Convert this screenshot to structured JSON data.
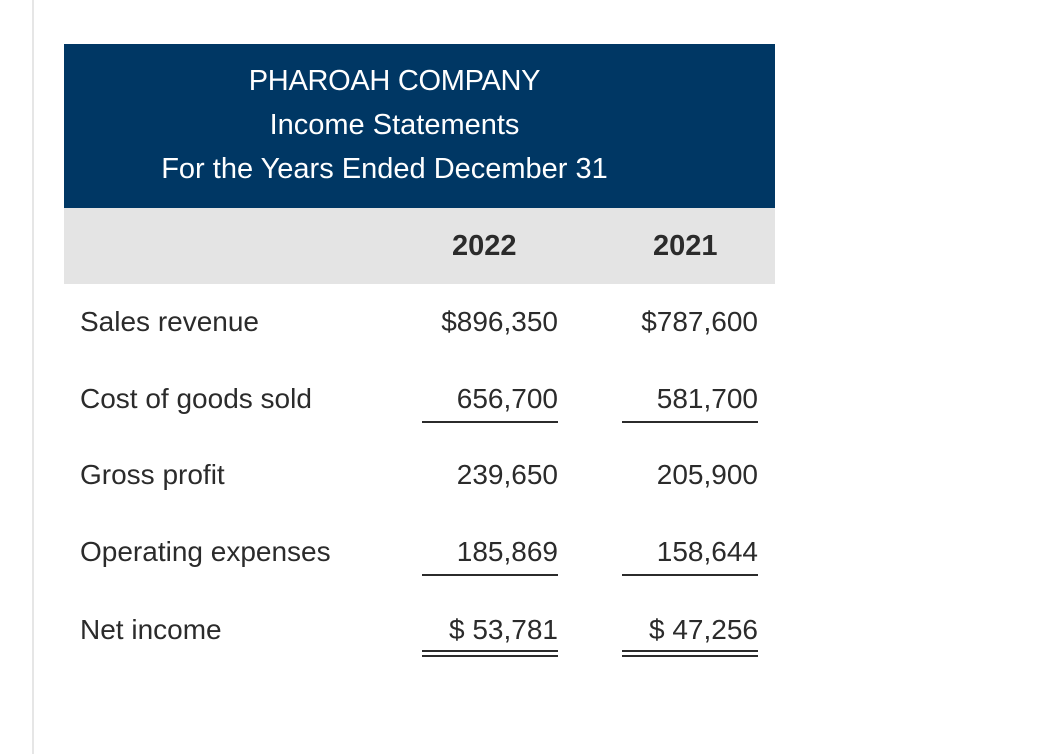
{
  "statement": {
    "company": "PHAROAH COMPANY",
    "title": "Income Statements",
    "period": "For the Years Ended December 31",
    "columns": [
      "2022",
      "2021"
    ],
    "rows": [
      {
        "label": "Sales revenue",
        "values": [
          "$896,350",
          "$787,600"
        ]
      },
      {
        "label": "Cost of goods sold",
        "values": [
          "656,700",
          "581,700"
        ]
      },
      {
        "label": "Gross profit",
        "values": [
          "239,650",
          "205,900"
        ]
      },
      {
        "label": "Operating expenses",
        "values": [
          "185,869",
          "158,644"
        ]
      },
      {
        "label": "Net income",
        "values": [
          "$ 53,781",
          "$ 47,256"
        ]
      }
    ]
  },
  "colors": {
    "header_band": "#003764",
    "column_band": "#e4e4e4",
    "text": "#2b2b2b"
  }
}
